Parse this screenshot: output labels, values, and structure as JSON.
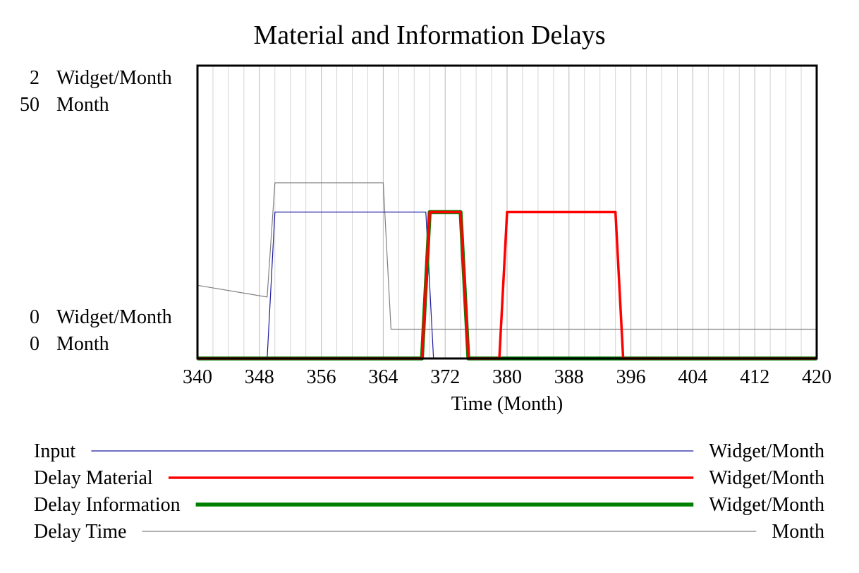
{
  "chart_data": {
    "type": "line",
    "title": "Material and Information Delays",
    "xlabel": "Time (Month)",
    "xlim": [
      340,
      420
    ],
    "x_ticks": [
      340,
      348,
      356,
      364,
      372,
      380,
      388,
      396,
      404,
      412,
      420
    ],
    "grid": "vertical",
    "axes": [
      {
        "unit": "Widget/Month",
        "range": [
          0,
          2
        ],
        "top_label": "2",
        "bottom_label": "0"
      },
      {
        "unit": "Month",
        "range": [
          0,
          50
        ],
        "top_label": "50",
        "bottom_label": "0"
      }
    ],
    "legend_placement": "bottom",
    "series": [
      {
        "name": "Input",
        "unit": "Widget/Month",
        "axis": 0,
        "color": "#1a1aa0",
        "points": [
          [
            340,
            0
          ],
          [
            349,
            0
          ],
          [
            350,
            1
          ],
          [
            369.5,
            1
          ],
          [
            370.5,
            0
          ],
          [
            420,
            0
          ]
        ]
      },
      {
        "name": "Delay Material",
        "unit": "Widget/Month",
        "axis": 0,
        "color": "#ff0000",
        "points": [
          [
            340,
            0
          ],
          [
            369,
            0
          ],
          [
            370,
            1
          ],
          [
            374,
            1
          ],
          [
            375,
            0
          ],
          [
            379,
            0
          ],
          [
            380,
            1
          ],
          [
            394,
            1
          ],
          [
            395,
            0
          ],
          [
            420,
            0
          ]
        ]
      },
      {
        "name": "Delay Information",
        "unit": "Widget/Month",
        "axis": 0,
        "color": "#008000",
        "points": [
          [
            340,
            0
          ],
          [
            369,
            0
          ],
          [
            370,
            1
          ],
          [
            374,
            1
          ],
          [
            375,
            0
          ],
          [
            420,
            0
          ]
        ]
      },
      {
        "name": "Delay Time",
        "unit": "Month",
        "axis": 1,
        "color": "#808080",
        "points": [
          [
            340,
            12.5
          ],
          [
            349,
            10.5
          ],
          [
            350,
            30
          ],
          [
            364,
            30
          ],
          [
            365,
            5
          ],
          [
            420,
            5
          ]
        ]
      }
    ]
  }
}
